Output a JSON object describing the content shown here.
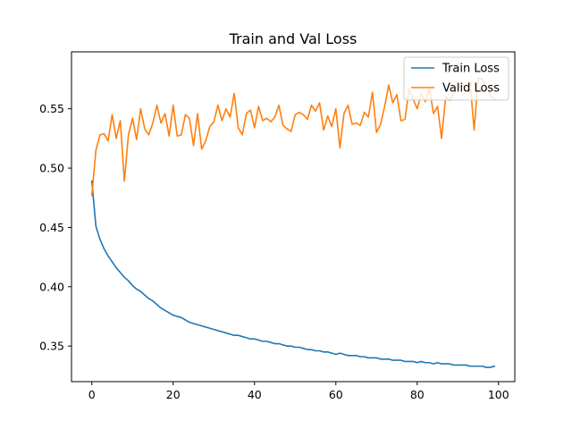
{
  "chart_data": {
    "type": "line",
    "title": "Train and Val Loss",
    "xlabel": "",
    "ylabel": "",
    "xlim": [
      -5,
      104
    ],
    "ylim": [
      0.32,
      0.598
    ],
    "xticks": [
      0,
      20,
      40,
      60,
      80,
      100
    ],
    "yticks": [
      0.35,
      0.4,
      0.45,
      0.5,
      0.55
    ],
    "ytick_labels": [
      "0.35",
      "0.40",
      "0.45",
      "0.50",
      "0.55"
    ],
    "grid": false,
    "legend_position": "top-right",
    "x": [
      0,
      1,
      2,
      3,
      4,
      5,
      6,
      7,
      8,
      9,
      10,
      11,
      12,
      13,
      14,
      15,
      16,
      17,
      18,
      19,
      20,
      21,
      22,
      23,
      24,
      25,
      26,
      27,
      28,
      29,
      30,
      31,
      32,
      33,
      34,
      35,
      36,
      37,
      38,
      39,
      40,
      41,
      42,
      43,
      44,
      45,
      46,
      47,
      48,
      49,
      50,
      51,
      52,
      53,
      54,
      55,
      56,
      57,
      58,
      59,
      60,
      61,
      62,
      63,
      64,
      65,
      66,
      67,
      68,
      69,
      70,
      71,
      72,
      73,
      74,
      75,
      76,
      77,
      78,
      79,
      80,
      81,
      82,
      83,
      84,
      85,
      86,
      87,
      88,
      89,
      90,
      91,
      92,
      93,
      94,
      95,
      96,
      97,
      98,
      99
    ],
    "series": [
      {
        "name": "Train Loss",
        "color": "#1f77b4",
        "values": [
          0.489,
          0.451,
          0.44,
          0.432,
          0.426,
          0.421,
          0.416,
          0.412,
          0.408,
          0.405,
          0.401,
          0.398,
          0.396,
          0.393,
          0.39,
          0.388,
          0.385,
          0.382,
          0.38,
          0.378,
          0.376,
          0.375,
          0.374,
          0.372,
          0.37,
          0.369,
          0.368,
          0.367,
          0.366,
          0.365,
          0.364,
          0.363,
          0.362,
          0.361,
          0.36,
          0.359,
          0.359,
          0.358,
          0.357,
          0.356,
          0.356,
          0.355,
          0.354,
          0.354,
          0.353,
          0.352,
          0.352,
          0.351,
          0.35,
          0.35,
          0.349,
          0.349,
          0.348,
          0.347,
          0.347,
          0.346,
          0.346,
          0.345,
          0.345,
          0.344,
          0.343,
          0.344,
          0.343,
          0.342,
          0.342,
          0.342,
          0.341,
          0.341,
          0.34,
          0.34,
          0.34,
          0.339,
          0.339,
          0.339,
          0.338,
          0.338,
          0.338,
          0.337,
          0.337,
          0.337,
          0.336,
          0.337,
          0.336,
          0.336,
          0.335,
          0.336,
          0.335,
          0.335,
          0.335,
          0.334,
          0.334,
          0.334,
          0.334,
          0.333,
          0.333,
          0.333,
          0.333,
          0.332,
          0.332,
          0.333
        ]
      },
      {
        "name": "Valid Loss",
        "color": "#ff7f0e",
        "values": [
          0.477,
          0.515,
          0.528,
          0.529,
          0.523,
          0.545,
          0.525,
          0.54,
          0.489,
          0.528,
          0.542,
          0.524,
          0.55,
          0.533,
          0.528,
          0.538,
          0.553,
          0.538,
          0.546,
          0.527,
          0.553,
          0.527,
          0.528,
          0.545,
          0.542,
          0.519,
          0.546,
          0.516,
          0.523,
          0.535,
          0.539,
          0.553,
          0.54,
          0.55,
          0.543,
          0.563,
          0.534,
          0.528,
          0.546,
          0.549,
          0.534,
          0.552,
          0.54,
          0.542,
          0.539,
          0.543,
          0.553,
          0.536,
          0.533,
          0.531,
          0.545,
          0.547,
          0.545,
          0.541,
          0.553,
          0.548,
          0.555,
          0.532,
          0.544,
          0.535,
          0.55,
          0.517,
          0.546,
          0.553,
          0.537,
          0.538,
          0.536,
          0.547,
          0.543,
          0.564,
          0.53,
          0.537,
          0.552,
          0.57,
          0.555,
          0.562,
          0.54,
          0.541,
          0.567,
          0.558,
          0.55,
          0.563,
          0.556,
          0.567,
          0.546,
          0.552,
          0.525,
          0.56,
          0.557,
          0.563,
          0.567,
          0.571,
          0.565,
          0.573,
          0.532,
          0.576,
          0.575,
          0.569,
          0.561,
          0.558
        ]
      }
    ]
  }
}
